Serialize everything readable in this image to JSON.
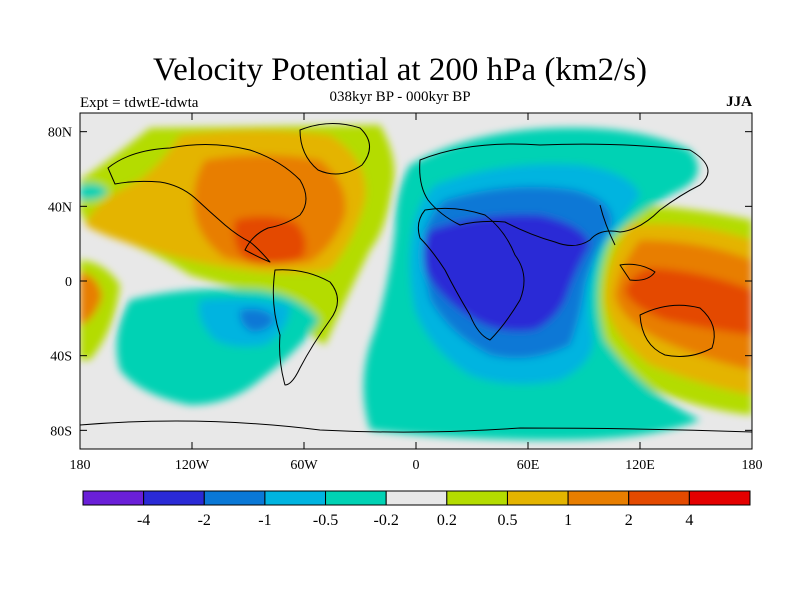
{
  "title": "Velocity Potential at 200 hPa (km2/s)",
  "subtitle": "038kyr BP - 000kyr BP",
  "expt_label": "Expt = tdwtE-tdwta",
  "season_label": "JJA",
  "map": {
    "projection": "cylindrical equidistant",
    "lon_range": [
      -180,
      180
    ],
    "lat_range": [
      -90,
      90
    ],
    "background_color": "#e8e8e8",
    "x_ticks": [
      {
        "lon": -180,
        "label": "180"
      },
      {
        "lon": -120,
        "label": "120W"
      },
      {
        "lon": -60,
        "label": "60W"
      },
      {
        "lon": 0,
        "label": "0"
      },
      {
        "lon": 60,
        "label": "60E"
      },
      {
        "lon": 120,
        "label": "120E"
      },
      {
        "lon": 180,
        "label": "180"
      }
    ],
    "y_ticks": [
      {
        "lat": 80,
        "label": "80N"
      },
      {
        "lat": 40,
        "label": "40N"
      },
      {
        "lat": 0,
        "label": "0"
      },
      {
        "lat": -40,
        "label": "40S"
      },
      {
        "lat": -80,
        "label": "80S"
      }
    ]
  },
  "colorbar": {
    "colors": [
      "#6a1fd8",
      "#2a2ad6",
      "#0a78d6",
      "#00b4e0",
      "#00d2b4",
      "#e8e8e8",
      "#b4dc00",
      "#e4b400",
      "#e87e00",
      "#e44a00",
      "#e40000"
    ],
    "labels": [
      "-4",
      "-2",
      "-1",
      "-0.5",
      "-0.2",
      "0.2",
      "0.5",
      "1",
      "2",
      "4"
    ]
  }
}
